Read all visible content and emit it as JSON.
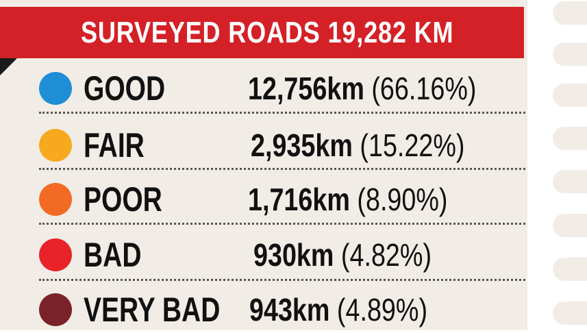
{
  "header": {
    "title": "SURVEYED ROADS 19,282 KM"
  },
  "categories": [
    {
      "label": "GOOD",
      "length": "12,756km",
      "percent": "(66.16%)",
      "color": "#1e8ed6"
    },
    {
      "label": "FAIR",
      "length": "2,935km",
      "percent": "(15.22%)",
      "color": "#f7a91e"
    },
    {
      "label": "POOR",
      "length": "1,716km",
      "percent": "(8.90%)",
      "color": "#f26a24"
    },
    {
      "label": "BAD",
      "length": "930km",
      "percent": "(4.82%)",
      "color": "#e8232a"
    },
    {
      "label": "VERY BAD",
      "length": "943km",
      "percent": "(4.89%)",
      "color": "#7a2228"
    }
  ]
}
